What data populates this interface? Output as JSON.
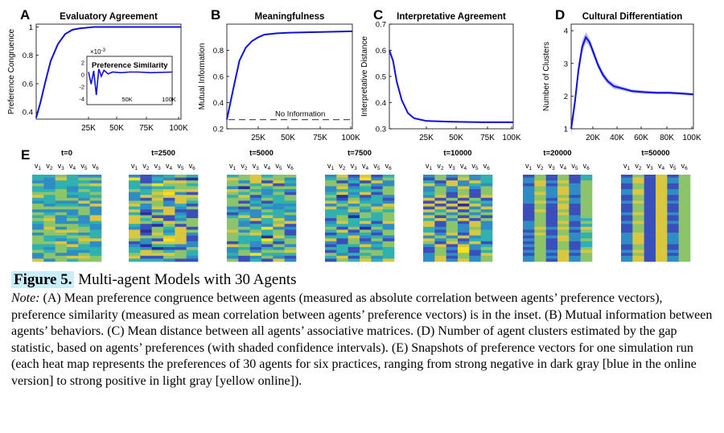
{
  "figure": {
    "panels": [
      {
        "letter": "A",
        "title": "Evaluatory Agreement",
        "ylabel": "Preference Congruence",
        "yticks": [
          "0.4",
          "0.6",
          "0.8",
          "1"
        ],
        "xticks": [
          "25K",
          "50K",
          "75K",
          "100K"
        ],
        "inset": {
          "label": "Preference Similarity",
          "multiplier": "×10",
          "exponent": "-3",
          "yticks": [
            "2",
            "0",
            "-2",
            "-4"
          ],
          "xticks": [
            "50K",
            "100K"
          ]
        }
      },
      {
        "letter": "B",
        "title": "Meaningfulness",
        "ylabel": "Mutual Information",
        "yticks": [
          "0.2",
          "0.4",
          "0.6",
          "0.8"
        ],
        "xticks": [
          "25K",
          "50K",
          "75K",
          "100K"
        ],
        "annotation": "No Information"
      },
      {
        "letter": "C",
        "title": "Interpretative Agreement",
        "ylabel": "Interpretative Distance",
        "yticks": [
          "0.3",
          "0.4",
          "0.5",
          "0.6",
          "0.7"
        ],
        "xticks": [
          "25K",
          "50K",
          "75K",
          "100K"
        ]
      },
      {
        "letter": "D",
        "title": "Cultural Differentiation",
        "ylabel": "Number of Clusters",
        "yticks": [
          "1",
          "2",
          "3",
          "4"
        ],
        "xticks": [
          "20K",
          "40K",
          "60K",
          "80K",
          "100K"
        ]
      }
    ],
    "panel_e": {
      "letter": "E",
      "variable_labels": [
        "v1",
        "v2",
        "v3",
        "v4",
        "v5",
        "v6"
      ],
      "snapshots": [
        "t=0",
        "t=2500",
        "t=5000",
        "t=7500",
        "t=10000",
        "t=20000",
        "t=50000"
      ]
    }
  },
  "chart_data": [
    {
      "type": "line",
      "panel": "A",
      "title": "Evaluatory Agreement",
      "ylabel": "Preference Congruence",
      "ylim": [
        0.35,
        1.02
      ],
      "xlim": [
        0,
        100000
      ],
      "x": [
        0,
        3000,
        6000,
        10000,
        15000,
        20000,
        25000,
        30000,
        40000,
        50000,
        60000,
        75000,
        100000
      ],
      "series": [
        {
          "values": [
            0.36,
            0.47,
            0.6,
            0.76,
            0.88,
            0.95,
            0.98,
            0.99,
            1.0,
            1.0,
            1.0,
            1.0,
            1.0
          ]
        }
      ]
    },
    {
      "type": "line",
      "panel": "A-inset",
      "title": "Preference Similarity",
      "ylim": [
        -5,
        3
      ],
      "xlim": [
        0,
        100000
      ],
      "x": [
        2000,
        5000,
        8000,
        11000,
        14000,
        17000,
        20000,
        25000,
        30000,
        40000,
        50000,
        60000,
        75000,
        100000
      ],
      "series": [
        {
          "values": [
            0.4,
            -1.6,
            0.6,
            -3.4,
            0.9,
            -0.3,
            0.7,
            0.1,
            0.4,
            0.3,
            0.4,
            0.4,
            0.3,
            0.4
          ]
        }
      ]
    },
    {
      "type": "line",
      "panel": "B",
      "title": "Meaningfulness",
      "ylabel": "Mutual Information",
      "ylim": [
        0.2,
        1.0
      ],
      "xlim": [
        0,
        100000
      ],
      "x": [
        0,
        5000,
        10000,
        15000,
        20000,
        25000,
        30000,
        40000,
        50000,
        75000,
        100000
      ],
      "series": [
        {
          "values": [
            0.27,
            0.5,
            0.72,
            0.82,
            0.87,
            0.9,
            0.92,
            0.93,
            0.935,
            0.94,
            0.945
          ]
        }
      ],
      "reference_line": 0.27
    },
    {
      "type": "line",
      "panel": "C",
      "title": "Interpretative Agreement",
      "ylabel": "Interpretative Distance",
      "ylim": [
        0.3,
        0.7
      ],
      "xlim": [
        0,
        100000
      ],
      "x": [
        0,
        3000,
        6000,
        10000,
        15000,
        20000,
        25000,
        30000,
        50000,
        75000,
        100000
      ],
      "series": [
        {
          "values": [
            0.6,
            0.56,
            0.48,
            0.41,
            0.36,
            0.34,
            0.335,
            0.33,
            0.327,
            0.325,
            0.325
          ]
        }
      ]
    },
    {
      "type": "area",
      "panel": "D",
      "title": "Cultural Differentiation",
      "ylabel": "Number of Clusters",
      "ylim": [
        1,
        4.2
      ],
      "xlim": [
        0,
        100000
      ],
      "x": [
        0,
        3000,
        6000,
        9000,
        12000,
        15000,
        18000,
        22000,
        26000,
        30000,
        35000,
        40000,
        50000,
        60000,
        70000,
        80000,
        90000,
        100000
      ],
      "series": [
        {
          "values": [
            1.0,
            1.8,
            2.8,
            3.5,
            3.8,
            3.65,
            3.35,
            2.95,
            2.65,
            2.45,
            2.3,
            2.25,
            2.15,
            2.12,
            2.1,
            2.1,
            2.08,
            2.05
          ],
          "band": [
            0.2,
            0.2,
            0.2,
            0.2,
            0.15,
            0.12,
            0.12,
            0.1,
            0.1,
            0.08,
            0.08,
            0.06,
            0.05,
            0.05,
            0.04,
            0.04,
            0.04,
            0.04
          ]
        }
      ]
    },
    {
      "type": "heatmap",
      "panel": "E",
      "rows": 30,
      "columns": 6,
      "snapshots": [
        "t=0",
        "t=2500",
        "t=5000",
        "t=7500",
        "t=10000",
        "t=20000",
        "t=50000"
      ],
      "scale": "strong negative (dark blue) to strong positive (yellow)"
    }
  ],
  "caption": {
    "fig_label": "Figure 5.",
    "fig_title": " Multi-agent Models with 30 Agents",
    "note_label": "Note:",
    "note_text": " (A) Mean preference congruence between agents (measured as absolute correlation between agents’ preference vectors), preference similarity (measured as mean correlation between agents’ preference vectors) is in the inset. (B) Mutual information between agents’ behaviors. (C) Mean distance between all agents’ associative matrices. (D) Number of agent clusters estimated by the gap statistic, based on agents’ preferences (with shaded confidence intervals). (E) Snapshots of preference vectors for one simulation run (each heat map represents the preferences of 30 agents for six practices, ranging from strong negative in dark gray [blue in the online version] to strong positive in light gray [yellow online])."
  },
  "colors": {
    "line": "#1010dd",
    "band": "#9a9af0",
    "ref": "#555555"
  }
}
